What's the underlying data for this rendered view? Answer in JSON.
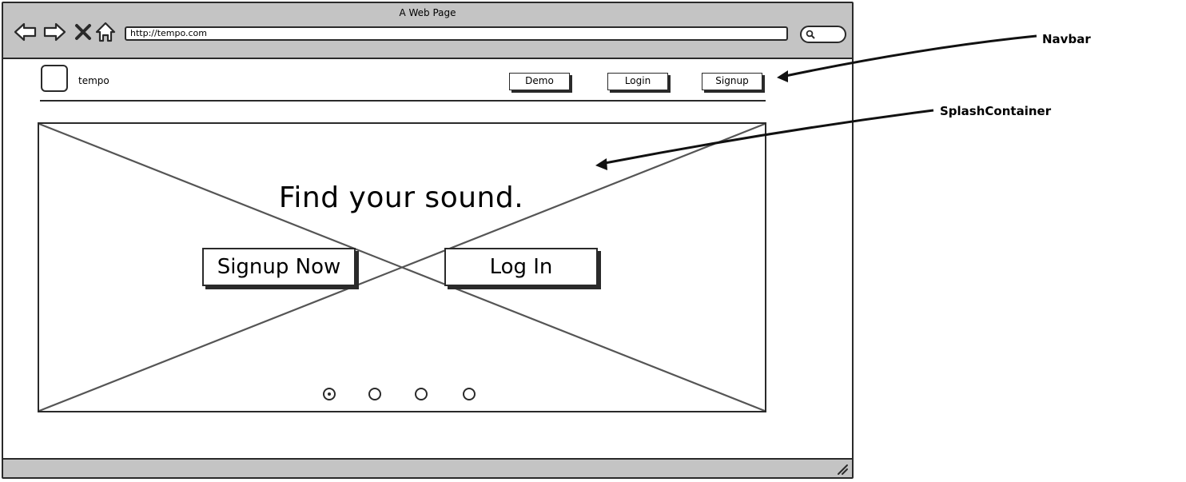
{
  "window": {
    "title": "A Web Page",
    "url": "http://tempo.com"
  },
  "toolbar": {
    "icons": [
      "back-arrow-icon",
      "forward-arrow-icon",
      "close-icon",
      "home-icon",
      "search-icon",
      "resize-grip-icon"
    ]
  },
  "navbar": {
    "brand": "tempo",
    "links": [
      {
        "label": "Demo"
      },
      {
        "label": "Login"
      },
      {
        "label": "Signup"
      }
    ]
  },
  "splash": {
    "headline": "Find your sound.",
    "signup_button": "Signup Now",
    "login_button": "Log In",
    "carousel": {
      "slides": 4,
      "active_index": 0
    }
  },
  "annotations": {
    "navbar_label": "Navbar",
    "splash_label": "SplashContainer"
  }
}
